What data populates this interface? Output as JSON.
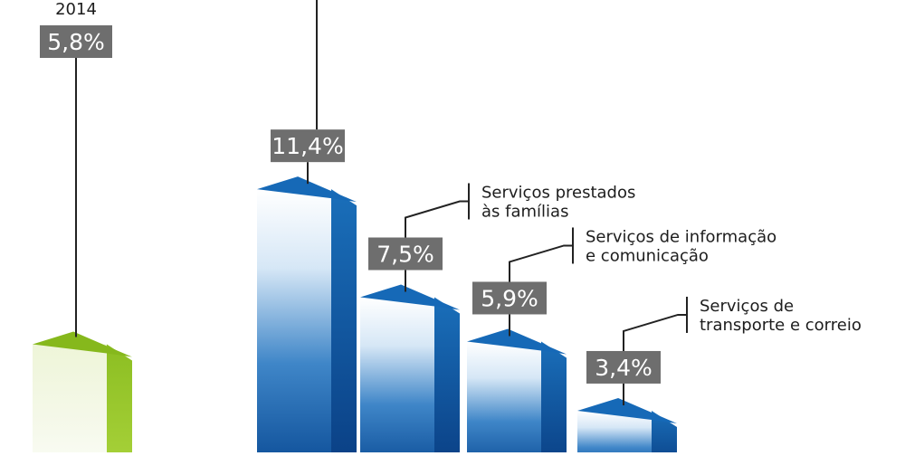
{
  "chart_data": {
    "type": "bar",
    "title": "",
    "xlabel": "",
    "ylabel": "",
    "unit": "%",
    "ylim": [
      0,
      14
    ],
    "colors": {
      "total": "#86b81c",
      "sectors": "#1669b7",
      "label_box": "#6e6e6e",
      "leader": "#222222"
    },
    "total": {
      "label": "2014",
      "value": 5.8,
      "display": "5,8%"
    },
    "categories": [
      "",
      "Serviços prestados às famílias",
      "Serviços de informação e comunicação",
      "Serviços de transporte e correio"
    ],
    "category_lines": [
      [],
      [
        "Serviços prestados",
        "às famílias"
      ],
      [
        "Serviços de informação",
        "e comunicação"
      ],
      [
        "Serviços de",
        "transporte e correio"
      ]
    ],
    "values": [
      11.4,
      7.5,
      5.9,
      3.4
    ],
    "display_values": [
      "11,4%",
      "7,5%",
      "5,9%",
      "3,4%"
    ]
  }
}
